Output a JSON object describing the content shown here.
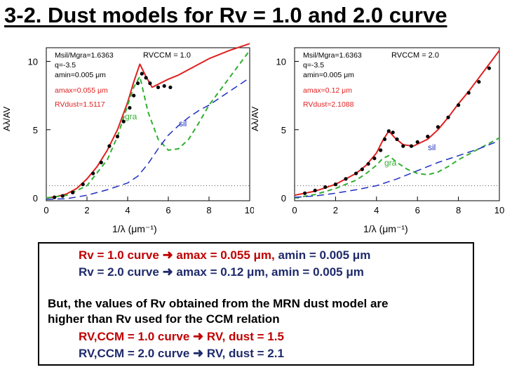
{
  "slide_title": "3-2. Dust models for Rv = 1.0 and 2.0 curve",
  "colors": {
    "red": "#c00000",
    "navy": "#1f2a6b",
    "model_red": "#e02020",
    "gra_green": "#30b030",
    "sil_blue": "#2030c0"
  },
  "chart_data": [
    {
      "type": "line",
      "panel": "left",
      "xlabel": "1/λ (μm⁻¹)",
      "ylabel": "Aλ/AV",
      "xlim": [
        0,
        10
      ],
      "ylim": [
        -0.2,
        11
      ],
      "xticks": [
        "0",
        "2",
        "4",
        "6",
        "8",
        "10"
      ],
      "yticks": [
        "0",
        "5",
        "10"
      ],
      "params": [
        "Msil/Mgra=1.6363",
        "q=-3.5",
        "amin=0.005 μm",
        "amax=0.055 μm",
        "RVdust=1.5117"
      ],
      "rv_label": "RVCCM = 1.0",
      "legend": {
        "gra": "gra",
        "sil": "sil"
      },
      "series": [
        {
          "name": "total",
          "x": [
            0,
            0.5,
            1,
            1.5,
            2,
            2.5,
            3,
            3.5,
            4,
            4.3,
            4.6,
            4.9,
            5.2,
            5.6,
            6,
            6.5,
            7,
            7.5,
            8,
            9,
            10
          ],
          "y": [
            0,
            0.1,
            0.3,
            0.7,
            1.4,
            2.3,
            3.5,
            5,
            7,
            8.5,
            9.8,
            8.9,
            8.1,
            8.4,
            8.7,
            9,
            9.4,
            9.8,
            10.2,
            10.8,
            11.3
          ]
        },
        {
          "name": "gra",
          "x": [
            0,
            1,
            2,
            3,
            3.5,
            4,
            4.3,
            4.6,
            5,
            5.5,
            6,
            6.5,
            7,
            7.5,
            8,
            9,
            10
          ],
          "y": [
            0,
            0.2,
            0.9,
            2.8,
            4.5,
            6.8,
            8.1,
            8.9,
            6.3,
            4.3,
            3.5,
            3.6,
            4.3,
            5.5,
            6.8,
            8.8,
            10.8
          ]
        },
        {
          "name": "sil",
          "x": [
            0,
            1,
            2,
            3,
            4,
            4.5,
            5,
            5.5,
            6,
            6.5,
            7,
            7.5,
            8,
            8.5,
            9,
            9.5,
            10
          ],
          "y": [
            -0.1,
            -0.05,
            0.2,
            0.6,
            1.1,
            1.6,
            2.5,
            3.6,
            4.6,
            5.3,
            5.9,
            6.4,
            6.8,
            7.3,
            7.8,
            8.3,
            8.8
          ]
        },
        {
          "name": "obs",
          "x": [
            0.4,
            0.8,
            1.3,
            1.8,
            2.3,
            2.7,
            3.1,
            3.5,
            3.8,
            4.1,
            4.3,
            4.5,
            4.7,
            4.9,
            5.1,
            5.5,
            5.8,
            6.1
          ],
          "y": [
            0.05,
            0.15,
            0.4,
            1.0,
            1.8,
            2.6,
            3.8,
            4.5,
            5.6,
            6.6,
            7.5,
            8.4,
            9.1,
            8.8,
            8.4,
            8.1,
            8.2,
            8.1
          ]
        }
      ]
    },
    {
      "type": "line",
      "panel": "right",
      "xlabel": "1/λ (μm⁻¹)",
      "ylabel": "Aλ/AV",
      "xlim": [
        0,
        10
      ],
      "ylim": [
        -0.2,
        11
      ],
      "xticks": [
        "0",
        "2",
        "4",
        "6",
        "8",
        "10"
      ],
      "yticks": [
        "0",
        "5",
        "10"
      ],
      "params": [
        "Msil/Mgra=1.6363",
        "q=-3.5",
        "amin=0.005 μm",
        "amax=0.12 μm",
        "RVdust=2.1088"
      ],
      "rv_label": "RVCCM = 2.0",
      "legend": {
        "gra": "gra",
        "sil": "sil"
      },
      "series": [
        {
          "name": "total",
          "x": [
            0,
            1,
            2,
            3,
            3.5,
            4,
            4.3,
            4.6,
            4.9,
            5.3,
            5.8,
            6.5,
            7,
            7.5,
            8,
            8.5,
            9,
            9.5,
            10
          ],
          "y": [
            0.2,
            0.5,
            1,
            1.8,
            2.4,
            3.3,
            4.2,
            4.9,
            4.4,
            3.9,
            3.8,
            4.3,
            5,
            5.9,
            6.9,
            7.8,
            8.8,
            9.8,
            10.8
          ]
        },
        {
          "name": "gra",
          "x": [
            0,
            1,
            2,
            3,
            3.5,
            4,
            4.3,
            4.6,
            5,
            5.5,
            6,
            6.5,
            7,
            7.5,
            8,
            9,
            10
          ],
          "y": [
            0,
            0.25,
            0.7,
            1.3,
            1.8,
            2.4,
            2.9,
            3.1,
            2.6,
            2.1,
            1.8,
            1.7,
            1.9,
            2.3,
            2.8,
            3.6,
            4.4
          ]
        },
        {
          "name": "sil",
          "x": [
            0,
            1,
            2,
            3,
            4,
            5,
            6,
            7,
            8,
            9,
            10
          ],
          "y": [
            0.05,
            0.15,
            0.35,
            0.6,
            0.9,
            1.4,
            2,
            2.6,
            3.1,
            3.6,
            4.2
          ]
        },
        {
          "name": "obs",
          "x": [
            0.5,
            1,
            1.5,
            2,
            2.5,
            3,
            3.3,
            3.6,
            3.9,
            4.2,
            4.4,
            4.6,
            4.8,
            5,
            5.3,
            5.7,
            6,
            6.5,
            7,
            7.5,
            8,
            8.5,
            9,
            9.5
          ],
          "y": [
            0.35,
            0.55,
            0.8,
            1,
            1.4,
            1.8,
            2.1,
            2.5,
            2.9,
            3.5,
            4.3,
            4.9,
            4.8,
            4.3,
            3.8,
            3.8,
            4.1,
            4.5,
            5.2,
            5.9,
            6.8,
            7.7,
            8.5,
            9.5
          ]
        }
      ]
    }
  ],
  "summary": {
    "rv1_lhs": "Rv = 1.0 curve",
    "rv1_amax": "amax = 0.055 μm, ",
    "rv1_amin": "amin = 0.005 μm",
    "rv2_lhs": "Rv = 2.0 curve",
    "rv2_amax": "amax = 0.12 μm, ",
    "rv2_amin": "amin = 0.005 μm",
    "note_line1": "But, the values of Rv obtained from the MRN dust model are",
    "note_line2": "higher than Rv used for the CCM relation",
    "ccm1_lhs": "RV,CCM = 1.0 curve",
    "ccm1_rhs": "RV, dust = 1.5",
    "ccm2_lhs": "RV,CCM = 2.0 curve",
    "ccm2_rhs": "RV, dust = 2.1"
  }
}
